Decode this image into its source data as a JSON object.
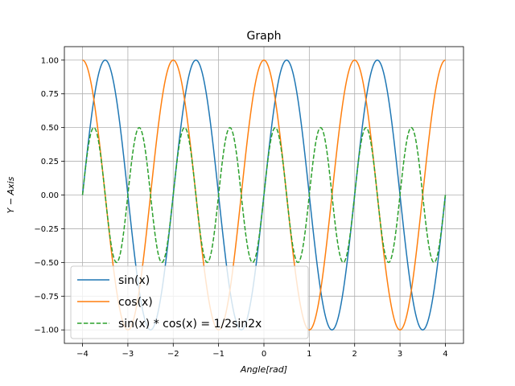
{
  "chart_data": {
    "type": "line",
    "title": "Graph",
    "xlabel": "Angle[rad]",
    "ylabel": "Y − Axis",
    "xlim": [
      -4.4,
      4.4
    ],
    "ylim": [
      -1.1,
      1.1
    ],
    "xticks": [
      -4,
      -3,
      -2,
      -1,
      0,
      1,
      2,
      3,
      4
    ],
    "xtick_labels": [
      "−4",
      "−3",
      "−2",
      "−1",
      "0",
      "1",
      "2",
      "3",
      "4"
    ],
    "yticks": [
      -1.0,
      -0.75,
      -0.5,
      -0.25,
      0.0,
      0.25,
      0.5,
      0.75,
      1.0
    ],
    "ytick_labels": [
      "−1.00",
      "−0.75",
      "−0.50",
      "−0.25",
      "0.00",
      "0.25",
      "0.50",
      "0.75",
      "1.00"
    ],
    "grid": true,
    "legend_position": "lower-left",
    "x_domain": [
      -4,
      4
    ],
    "series": [
      {
        "name": "sin(x)",
        "function": "sin(pi*x)",
        "color": "#1f77b4",
        "style": "solid"
      },
      {
        "name": "cos(x)",
        "function": "cos(pi*x)",
        "color": "#ff7f0e",
        "style": "solid"
      },
      {
        "name": "sin(x) * cos(x) = 1/2sin2x",
        "function": "0.5*sin(2*pi*x)",
        "color": "#2ca02c",
        "style": "dashed"
      }
    ]
  }
}
